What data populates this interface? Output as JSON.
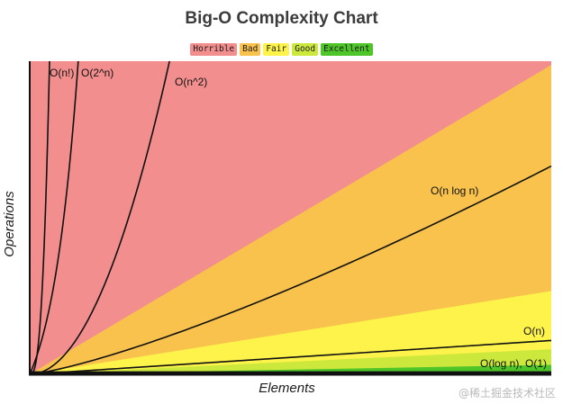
{
  "chart_data": {
    "type": "area",
    "title": "Big-O Complexity Chart",
    "xlabel": "Elements",
    "ylabel": "Operations",
    "legend": [
      {
        "label": "Horrible",
        "color": "#f28e8e"
      },
      {
        "label": "Bad",
        "color": "#f8c24d"
      },
      {
        "label": "Fair",
        "color": "#fdf34a"
      },
      {
        "label": "Good",
        "color": "#cde83c"
      },
      {
        "label": "Excellent",
        "color": "#4ec629"
      }
    ],
    "legend_placement": "top-center",
    "regions": [
      {
        "name": "Horrible",
        "color": "#f28e8e"
      },
      {
        "name": "Bad",
        "color": "#f8c24d"
      },
      {
        "name": "Fair",
        "color": "#fdf34a"
      },
      {
        "name": "Good",
        "color": "#cde83c"
      },
      {
        "name": "Excellent",
        "color": "#4ec629"
      }
    ],
    "series": [
      {
        "name": "O(n!)",
        "function": "factorial"
      },
      {
        "name": "O(2^n)",
        "function": "exponential"
      },
      {
        "name": "O(n^2)",
        "function": "quadratic"
      },
      {
        "name": "O(n log n)",
        "function": "nlogn"
      },
      {
        "name": "O(n)",
        "function": "linear"
      },
      {
        "name": "O(log n), O(1)",
        "function": "log_constant"
      }
    ],
    "grid": false
  },
  "watermark": "@稀土掘金技术社区"
}
